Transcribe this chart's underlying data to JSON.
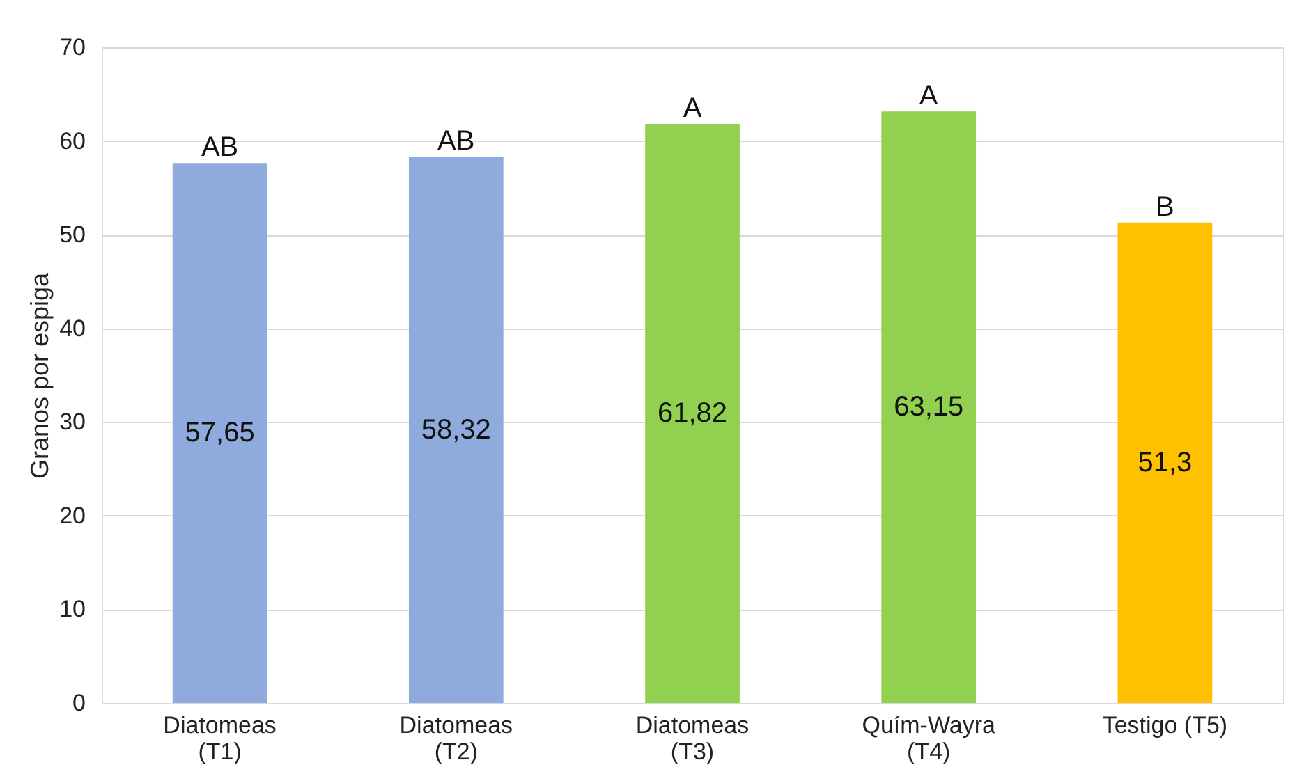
{
  "chart_data": {
    "type": "bar",
    "ylabel": "Granos por espiga",
    "categories": [
      "Diatomeas\n(T1)",
      "Diatomeas\n(T2)",
      "Diatomeas\n(T3)",
      "Quím-Wayra\n(T4)",
      "Testigo  (T5)"
    ],
    "values": [
      57.65,
      58.32,
      61.82,
      63.15,
      51.3
    ],
    "colors": [
      "#8faadc",
      "#8faadc",
      "#92d050",
      "#92d050",
      "#ffc000"
    ],
    "value_labels": [
      "57,65",
      "58,32",
      "61,82",
      "63,15",
      "51,3"
    ],
    "annotations": [
      {
        "text": "AB",
        "x": "Diatomeas\n(T1)",
        "y": 57.65
      },
      {
        "text": "AB",
        "x": "Diatomeas\n(T2)",
        "y": 58.32
      },
      {
        "text": "A",
        "x": "Diatomeas\n(T3)",
        "y": 61.82
      },
      {
        "text": "A",
        "x": "Quím-Wayra\n(T4)",
        "y": 63.15
      },
      {
        "text": "B",
        "x": "Testigo  (T5)",
        "y": 51.3
      }
    ],
    "ylim": [
      0,
      70
    ],
    "yticks": [
      0,
      10,
      20,
      30,
      40,
      50,
      60,
      70
    ],
    "grid": "y"
  }
}
